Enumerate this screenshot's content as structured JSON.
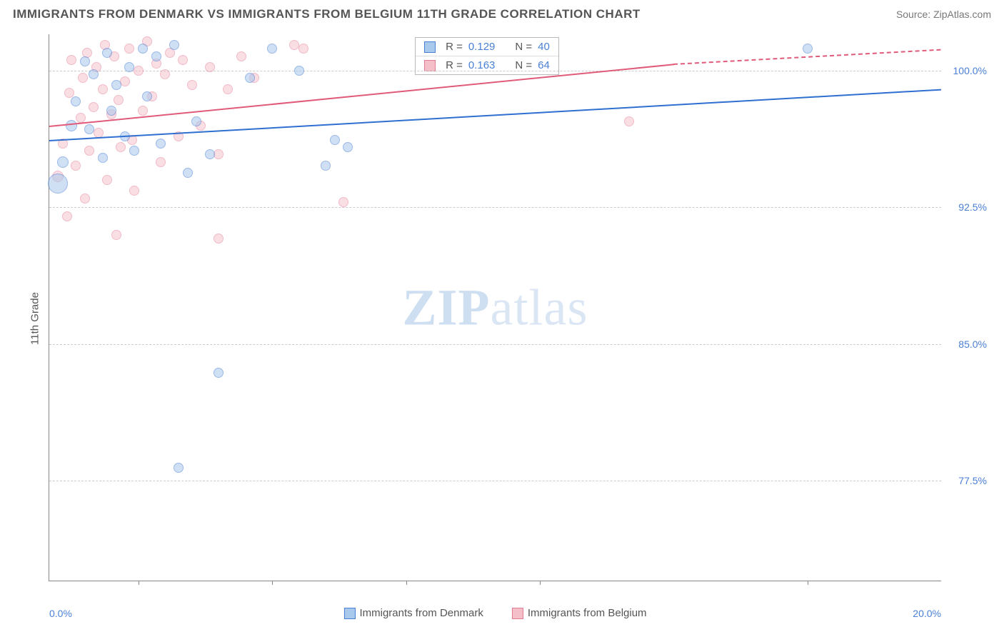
{
  "title": "IMMIGRANTS FROM DENMARK VS IMMIGRANTS FROM BELGIUM 11TH GRADE CORRELATION CHART",
  "source": "Source: ZipAtlas.com",
  "ylabel": "11th Grade",
  "watermark_bold": "ZIP",
  "watermark_light": "atlas",
  "chart": {
    "type": "scatter",
    "xlim": [
      0,
      20
    ],
    "ylim": [
      72,
      102
    ],
    "x_axis_label_left": "0.0%",
    "x_axis_label_right": "20.0%",
    "x_tick_positions": [
      2,
      5,
      8,
      11,
      17
    ],
    "y_ticks": [
      {
        "v": 100.0,
        "label": "100.0%"
      },
      {
        "v": 92.5,
        "label": "92.5%"
      },
      {
        "v": 85.0,
        "label": "85.0%"
      },
      {
        "v": 77.5,
        "label": "77.5%"
      }
    ],
    "series": [
      {
        "name": "Immigrants from Denmark",
        "fill": "#a8c8ec",
        "stroke": "#4a7fd6",
        "line_color": "#2f6fd0",
        "opacity": 0.55,
        "R": "0.129",
        "N": "40",
        "trend": {
          "x0": 0,
          "y0": 96.2,
          "x1": 20,
          "y1": 99.0
        },
        "points": [
          {
            "x": 0.2,
            "y": 93.8,
            "r": 14
          },
          {
            "x": 0.3,
            "y": 95.0,
            "r": 8
          },
          {
            "x": 0.5,
            "y": 97.0,
            "r": 8
          },
          {
            "x": 0.6,
            "y": 98.3,
            "r": 7
          },
          {
            "x": 0.8,
            "y": 100.5,
            "r": 7
          },
          {
            "x": 0.9,
            "y": 96.8,
            "r": 7
          },
          {
            "x": 1.0,
            "y": 99.8,
            "r": 7
          },
          {
            "x": 1.2,
            "y": 95.2,
            "r": 7
          },
          {
            "x": 1.3,
            "y": 101.0,
            "r": 7
          },
          {
            "x": 1.4,
            "y": 97.8,
            "r": 7
          },
          {
            "x": 1.5,
            "y": 99.2,
            "r": 7
          },
          {
            "x": 1.7,
            "y": 96.4,
            "r": 7
          },
          {
            "x": 1.8,
            "y": 100.2,
            "r": 7
          },
          {
            "x": 1.9,
            "y": 95.6,
            "r": 7
          },
          {
            "x": 2.1,
            "y": 101.2,
            "r": 7
          },
          {
            "x": 2.2,
            "y": 98.6,
            "r": 7
          },
          {
            "x": 2.4,
            "y": 100.8,
            "r": 7
          },
          {
            "x": 2.5,
            "y": 96.0,
            "r": 7
          },
          {
            "x": 2.8,
            "y": 101.4,
            "r": 7
          },
          {
            "x": 2.9,
            "y": 78.2,
            "r": 7
          },
          {
            "x": 3.1,
            "y": 94.4,
            "r": 7
          },
          {
            "x": 3.3,
            "y": 97.2,
            "r": 7
          },
          {
            "x": 3.6,
            "y": 95.4,
            "r": 7
          },
          {
            "x": 3.8,
            "y": 83.4,
            "r": 7
          },
          {
            "x": 4.5,
            "y": 99.6,
            "r": 7
          },
          {
            "x": 5.0,
            "y": 101.2,
            "r": 7
          },
          {
            "x": 5.6,
            "y": 100.0,
            "r": 7
          },
          {
            "x": 6.2,
            "y": 94.8,
            "r": 7
          },
          {
            "x": 6.4,
            "y": 96.2,
            "r": 7
          },
          {
            "x": 6.7,
            "y": 95.8,
            "r": 7
          },
          {
            "x": 17.0,
            "y": 101.2,
            "r": 7
          }
        ]
      },
      {
        "name": "Immigrants from Belgium",
        "fill": "#f5bfca",
        "stroke": "#e37a93",
        "line_color": "#e05a7a",
        "opacity": 0.5,
        "R": "0.163",
        "N": "64",
        "trend": {
          "x0": 0,
          "y0": 97.0,
          "x1": 14,
          "y1": 100.4,
          "dash_to_x": 20,
          "dash_to_y": 101.2
        },
        "points": [
          {
            "x": 0.2,
            "y": 94.2,
            "r": 8
          },
          {
            "x": 0.3,
            "y": 96.0,
            "r": 7
          },
          {
            "x": 0.4,
            "y": 92.0,
            "r": 7
          },
          {
            "x": 0.45,
            "y": 98.8,
            "r": 7
          },
          {
            "x": 0.5,
            "y": 100.6,
            "r": 7
          },
          {
            "x": 0.6,
            "y": 94.8,
            "r": 7
          },
          {
            "x": 0.7,
            "y": 97.4,
            "r": 7
          },
          {
            "x": 0.75,
            "y": 99.6,
            "r": 7
          },
          {
            "x": 0.8,
            "y": 93.0,
            "r": 7
          },
          {
            "x": 0.85,
            "y": 101.0,
            "r": 7
          },
          {
            "x": 0.9,
            "y": 95.6,
            "r": 7
          },
          {
            "x": 1.0,
            "y": 98.0,
            "r": 7
          },
          {
            "x": 1.05,
            "y": 100.2,
            "r": 7
          },
          {
            "x": 1.1,
            "y": 96.6,
            "r": 7
          },
          {
            "x": 1.2,
            "y": 99.0,
            "r": 7
          },
          {
            "x": 1.25,
            "y": 101.4,
            "r": 7
          },
          {
            "x": 1.3,
            "y": 94.0,
            "r": 7
          },
          {
            "x": 1.4,
            "y": 97.6,
            "r": 7
          },
          {
            "x": 1.45,
            "y": 100.8,
            "r": 7
          },
          {
            "x": 1.5,
            "y": 91.0,
            "r": 7
          },
          {
            "x": 1.55,
            "y": 98.4,
            "r": 7
          },
          {
            "x": 1.6,
            "y": 95.8,
            "r": 7
          },
          {
            "x": 1.7,
            "y": 99.4,
            "r": 7
          },
          {
            "x": 1.8,
            "y": 101.2,
            "r": 7
          },
          {
            "x": 1.85,
            "y": 96.2,
            "r": 7
          },
          {
            "x": 1.9,
            "y": 93.4,
            "r": 7
          },
          {
            "x": 2.0,
            "y": 100.0,
            "r": 7
          },
          {
            "x": 2.1,
            "y": 97.8,
            "r": 7
          },
          {
            "x": 2.2,
            "y": 101.6,
            "r": 7
          },
          {
            "x": 2.3,
            "y": 98.6,
            "r": 7
          },
          {
            "x": 2.4,
            "y": 100.4,
            "r": 7
          },
          {
            "x": 2.5,
            "y": 95.0,
            "r": 7
          },
          {
            "x": 2.6,
            "y": 99.8,
            "r": 7
          },
          {
            "x": 2.7,
            "y": 101.0,
            "r": 7
          },
          {
            "x": 2.9,
            "y": 96.4,
            "r": 7
          },
          {
            "x": 3.0,
            "y": 100.6,
            "r": 7
          },
          {
            "x": 3.2,
            "y": 99.2,
            "r": 7
          },
          {
            "x": 3.4,
            "y": 97.0,
            "r": 7
          },
          {
            "x": 3.6,
            "y": 100.2,
            "r": 7
          },
          {
            "x": 3.8,
            "y": 95.4,
            "r": 7
          },
          {
            "x": 3.8,
            "y": 90.8,
            "r": 7
          },
          {
            "x": 4.0,
            "y": 99.0,
            "r": 7
          },
          {
            "x": 4.3,
            "y": 100.8,
            "r": 7
          },
          {
            "x": 4.6,
            "y": 99.6,
            "r": 7
          },
          {
            "x": 5.5,
            "y": 101.4,
            "r": 7
          },
          {
            "x": 5.7,
            "y": 101.2,
            "r": 7
          },
          {
            "x": 6.6,
            "y": 92.8,
            "r": 7
          },
          {
            "x": 13.0,
            "y": 97.2,
            "r": 7
          }
        ]
      }
    ]
  },
  "legend_r": {
    "label_R": "R =",
    "label_N": "N ="
  }
}
